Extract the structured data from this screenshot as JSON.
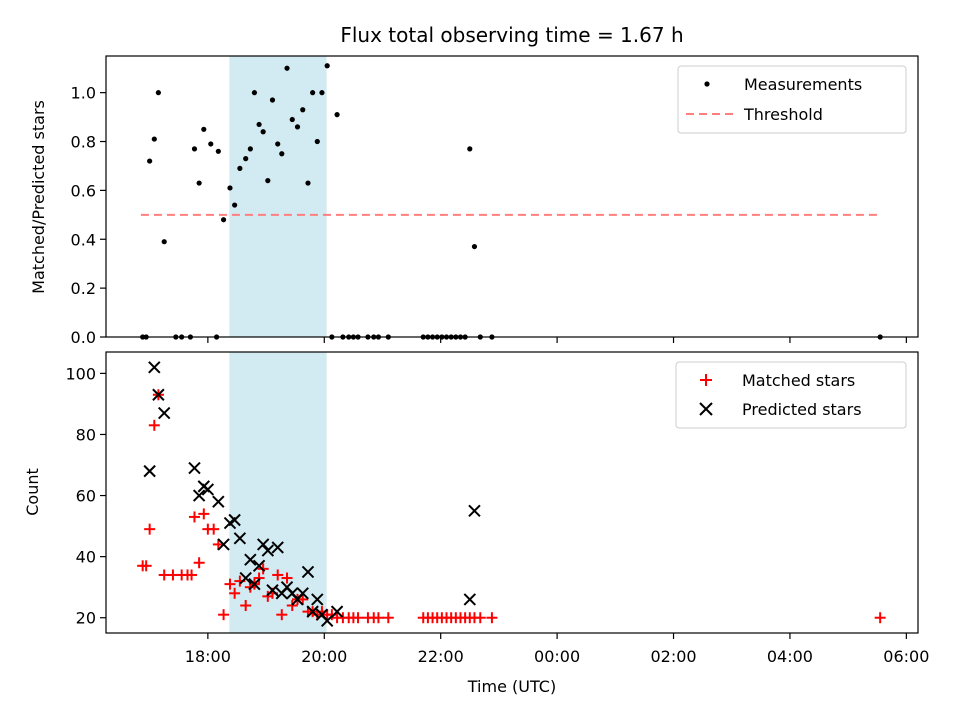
{
  "figure": {
    "title": "Flux total observing time = 1.67 h",
    "xlabel": "Time (UTC)"
  },
  "x_ticks": [
    {
      "value": 18,
      "label": "18:00"
    },
    {
      "value": 20,
      "label": "20:00"
    },
    {
      "value": 22,
      "label": "22:00"
    },
    {
      "value": 24,
      "label": "00:00"
    },
    {
      "value": 26,
      "label": "02:00"
    },
    {
      "value": 28,
      "label": "04:00"
    },
    {
      "value": 30,
      "label": "06:00"
    }
  ],
  "colors": {
    "measurements": "#000000",
    "threshold": "#ff7f7f",
    "matched": "#ff0000",
    "predicted": "#000000",
    "band": "#add8e6"
  },
  "chart_data": [
    {
      "type": "scatter",
      "ylabel": "Matched/Predicted stars",
      "xlim": [
        16.25,
        30.2
      ],
      "ylim": [
        0,
        1.15
      ],
      "y_ticks": [
        {
          "value": 0.0,
          "label": "0.0"
        },
        {
          "value": 0.2,
          "label": "0.2"
        },
        {
          "value": 0.4,
          "label": "0.4"
        },
        {
          "value": 0.6,
          "label": "0.6"
        },
        {
          "value": 0.8,
          "label": "0.8"
        },
        {
          "value": 1.0,
          "label": "1.0"
        }
      ],
      "legend_position": "top-right",
      "shaded_band": {
        "x_start": 18.37,
        "x_end": 20.04
      },
      "series": [
        {
          "name": "Measurements",
          "marker": "dot",
          "points": [
            [
              16.88,
              0
            ],
            [
              16.94,
              0
            ],
            [
              17.0,
              0.72
            ],
            [
              17.08,
              0.81
            ],
            [
              17.15,
              1.0
            ],
            [
              17.25,
              0.39
            ],
            [
              17.45,
              0
            ],
            [
              17.55,
              0
            ],
            [
              17.7,
              0
            ],
            [
              17.77,
              0.77
            ],
            [
              17.85,
              0.63
            ],
            [
              17.93,
              0.85
            ],
            [
              18.05,
              0.79
            ],
            [
              18.18,
              0.76
            ],
            [
              18.27,
              0.48
            ],
            [
              18.38,
              0.61
            ],
            [
              18.46,
              0.54
            ],
            [
              18.55,
              0.69
            ],
            [
              18.65,
              0.73
            ],
            [
              18.73,
              0.77
            ],
            [
              18.8,
              1.0
            ],
            [
              18.88,
              0.87
            ],
            [
              18.95,
              0.84
            ],
            [
              19.03,
              0.64
            ],
            [
              19.11,
              0.97
            ],
            [
              19.2,
              0.79
            ],
            [
              19.27,
              0.75
            ],
            [
              19.36,
              1.1
            ],
            [
              19.45,
              0.89
            ],
            [
              19.54,
              0.86
            ],
            [
              19.63,
              0.93
            ],
            [
              19.72,
              0.63
            ],
            [
              19.8,
              1.0
            ],
            [
              19.88,
              0.8
            ],
            [
              19.96,
              1.0
            ],
            [
              20.05,
              1.11
            ],
            [
              20.22,
              0.91
            ],
            [
              20.13,
              0
            ],
            [
              20.32,
              0
            ],
            [
              20.42,
              0
            ],
            [
              20.5,
              0
            ],
            [
              20.58,
              0
            ],
            [
              20.75,
              0
            ],
            [
              20.85,
              0
            ],
            [
              20.93,
              0
            ],
            [
              21.1,
              0
            ],
            [
              21.7,
              0
            ],
            [
              21.78,
              0
            ],
            [
              21.86,
              0
            ],
            [
              21.94,
              0
            ],
            [
              22.02,
              0
            ],
            [
              22.1,
              0
            ],
            [
              22.18,
              0
            ],
            [
              22.26,
              0
            ],
            [
              22.34,
              0
            ],
            [
              22.42,
              0
            ],
            [
              22.5,
              0.77
            ],
            [
              22.58,
              0.37
            ],
            [
              22.68,
              0
            ],
            [
              22.88,
              0
            ],
            [
              18.15,
              0
            ],
            [
              29.55,
              0
            ]
          ]
        },
        {
          "name": "Threshold",
          "line_style": "dashed",
          "x": [
            16.85,
            29.55
          ],
          "y": [
            0.5,
            0.5
          ]
        }
      ]
    },
    {
      "type": "scatter",
      "ylabel": "Count",
      "xlim": [
        16.25,
        30.2
      ],
      "ylim": [
        15,
        107
      ],
      "y_ticks": [
        {
          "value": 20,
          "label": "20"
        },
        {
          "value": 40,
          "label": "40"
        },
        {
          "value": 60,
          "label": "60"
        },
        {
          "value": 80,
          "label": "80"
        },
        {
          "value": 100,
          "label": "100"
        }
      ],
      "legend_position": "top-right",
      "shaded_band": {
        "x_start": 18.37,
        "x_end": 20.04
      },
      "series": [
        {
          "name": "Matched stars",
          "marker": "plus",
          "points": [
            [
              16.88,
              37
            ],
            [
              16.94,
              37
            ],
            [
              17.0,
              49
            ],
            [
              17.08,
              83
            ],
            [
              17.15,
              93
            ],
            [
              17.25,
              34
            ],
            [
              17.4,
              34
            ],
            [
              17.55,
              34
            ],
            [
              17.65,
              34
            ],
            [
              17.72,
              34
            ],
            [
              17.77,
              53
            ],
            [
              17.85,
              38
            ],
            [
              17.93,
              54
            ],
            [
              18.0,
              49
            ],
            [
              18.1,
              49
            ],
            [
              18.18,
              44
            ],
            [
              18.27,
              21
            ],
            [
              18.38,
              31
            ],
            [
              18.46,
              28
            ],
            [
              18.55,
              32
            ],
            [
              18.65,
              24
            ],
            [
              18.73,
              30
            ],
            [
              18.8,
              31
            ],
            [
              18.88,
              33
            ],
            [
              18.95,
              36
            ],
            [
              19.03,
              27
            ],
            [
              19.11,
              28
            ],
            [
              19.2,
              34
            ],
            [
              19.27,
              21
            ],
            [
              19.36,
              33
            ],
            [
              19.45,
              24
            ],
            [
              19.54,
              26
            ],
            [
              19.63,
              26
            ],
            [
              19.72,
              22
            ],
            [
              19.8,
              22
            ],
            [
              19.88,
              21
            ],
            [
              19.96,
              22
            ],
            [
              20.05,
              21
            ],
            [
              20.13,
              21
            ],
            [
              20.22,
              20
            ],
            [
              20.32,
              20
            ],
            [
              20.42,
              20
            ],
            [
              20.5,
              20
            ],
            [
              20.58,
              20
            ],
            [
              20.75,
              20
            ],
            [
              20.85,
              20
            ],
            [
              20.93,
              20
            ],
            [
              21.1,
              20
            ],
            [
              21.7,
              20
            ],
            [
              21.78,
              20
            ],
            [
              21.86,
              20
            ],
            [
              21.94,
              20
            ],
            [
              22.02,
              20
            ],
            [
              22.1,
              20
            ],
            [
              22.18,
              20
            ],
            [
              22.26,
              20
            ],
            [
              22.34,
              20
            ],
            [
              22.42,
              20
            ],
            [
              22.5,
              20
            ],
            [
              22.58,
              20
            ],
            [
              22.68,
              20
            ],
            [
              22.88,
              20
            ],
            [
              29.55,
              20
            ]
          ]
        },
        {
          "name": "Predicted stars",
          "marker": "x",
          "points": [
            [
              17.0,
              68
            ],
            [
              17.08,
              102
            ],
            [
              17.15,
              93
            ],
            [
              17.25,
              87
            ],
            [
              17.77,
              69
            ],
            [
              17.85,
              60
            ],
            [
              17.93,
              63
            ],
            [
              18.0,
              62
            ],
            [
              18.18,
              58
            ],
            [
              18.27,
              44
            ],
            [
              18.38,
              51
            ],
            [
              18.46,
              52
            ],
            [
              18.55,
              46
            ],
            [
              18.65,
              33
            ],
            [
              18.73,
              39
            ],
            [
              18.8,
              31
            ],
            [
              18.88,
              37
            ],
            [
              18.95,
              44
            ],
            [
              19.03,
              42
            ],
            [
              19.11,
              29
            ],
            [
              19.2,
              43
            ],
            [
              19.27,
              28
            ],
            [
              19.36,
              30
            ],
            [
              19.45,
              28
            ],
            [
              19.54,
              26
            ],
            [
              19.63,
              28
            ],
            [
              19.72,
              35
            ],
            [
              19.8,
              22
            ],
            [
              19.88,
              26
            ],
            [
              19.96,
              21
            ],
            [
              20.05,
              19
            ],
            [
              20.22,
              22
            ],
            [
              22.5,
              26
            ],
            [
              22.58,
              55
            ]
          ]
        }
      ]
    }
  ]
}
